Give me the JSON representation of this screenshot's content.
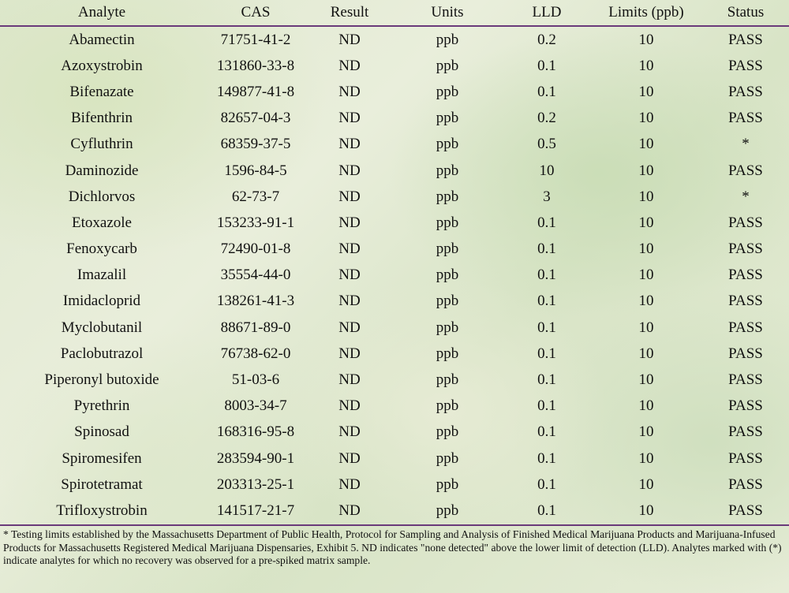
{
  "table": {
    "headers": [
      "Analyte",
      "CAS",
      "Result",
      "Units",
      "LLD",
      "Limits (ppb)",
      "Status"
    ],
    "rows": [
      [
        "Abamectin",
        "71751-41-2",
        "ND",
        "ppb",
        "0.2",
        "10",
        "PASS"
      ],
      [
        "Azoxystrobin",
        "131860-33-8",
        "ND",
        "ppb",
        "0.1",
        "10",
        "PASS"
      ],
      [
        "Bifenazate",
        "149877-41-8",
        "ND",
        "ppb",
        "0.1",
        "10",
        "PASS"
      ],
      [
        "Bifenthrin",
        "82657-04-3",
        "ND",
        "ppb",
        "0.2",
        "10",
        "PASS"
      ],
      [
        "Cyfluthrin",
        "68359-37-5",
        "ND",
        "ppb",
        "0.5",
        "10",
        "*"
      ],
      [
        "Daminozide",
        "1596-84-5",
        "ND",
        "ppb",
        "10",
        "10",
        "PASS"
      ],
      [
        "Dichlorvos",
        "62-73-7",
        "ND",
        "ppb",
        "3",
        "10",
        "*"
      ],
      [
        "Etoxazole",
        "153233-91-1",
        "ND",
        "ppb",
        "0.1",
        "10",
        "PASS"
      ],
      [
        "Fenoxycarb",
        "72490-01-8",
        "ND",
        "ppb",
        "0.1",
        "10",
        "PASS"
      ],
      [
        "Imazalil",
        "35554-44-0",
        "ND",
        "ppb",
        "0.1",
        "10",
        "PASS"
      ],
      [
        "Imidacloprid",
        "138261-41-3",
        "ND",
        "ppb",
        "0.1",
        "10",
        "PASS"
      ],
      [
        "Myclobutanil",
        "88671-89-0",
        "ND",
        "ppb",
        "0.1",
        "10",
        "PASS"
      ],
      [
        "Paclobutrazol",
        "76738-62-0",
        "ND",
        "ppb",
        "0.1",
        "10",
        "PASS"
      ],
      [
        "Piperonyl butoxide",
        "51-03-6",
        "ND",
        "ppb",
        "0.1",
        "10",
        "PASS"
      ],
      [
        "Pyrethrin",
        "8003-34-7",
        "ND",
        "ppb",
        "0.1",
        "10",
        "PASS"
      ],
      [
        "Spinosad",
        "168316-95-8",
        "ND",
        "ppb",
        "0.1",
        "10",
        "PASS"
      ],
      [
        "Spiromesifen",
        "283594-90-1",
        "ND",
        "ppb",
        "0.1",
        "10",
        "PASS"
      ],
      [
        "Spirotetramat",
        "203313-25-1",
        "ND",
        "ppb",
        "0.1",
        "10",
        "PASS"
      ],
      [
        "Trifloxystrobin",
        "141517-21-7",
        "ND",
        "ppb",
        "0.1",
        "10",
        "PASS"
      ]
    ]
  },
  "footnote": {
    "text": "* Testing limits established by the Massachusetts Department of Public Health, Protocol for Sampling and Analysis of Finished Medical Marijuana Products and Marijuana-Infused Products for Massachusetts Registered Medical Marijuana Dispensaries, Exhibit 5.  ND indicates \"none detected\" above the  lower limit of detection (LLD).  Analytes marked with (*) indicate analytes for which no recovery was observed for a pre-spiked matrix sample."
  },
  "colors": {
    "rule": "#6a3a7a"
  }
}
